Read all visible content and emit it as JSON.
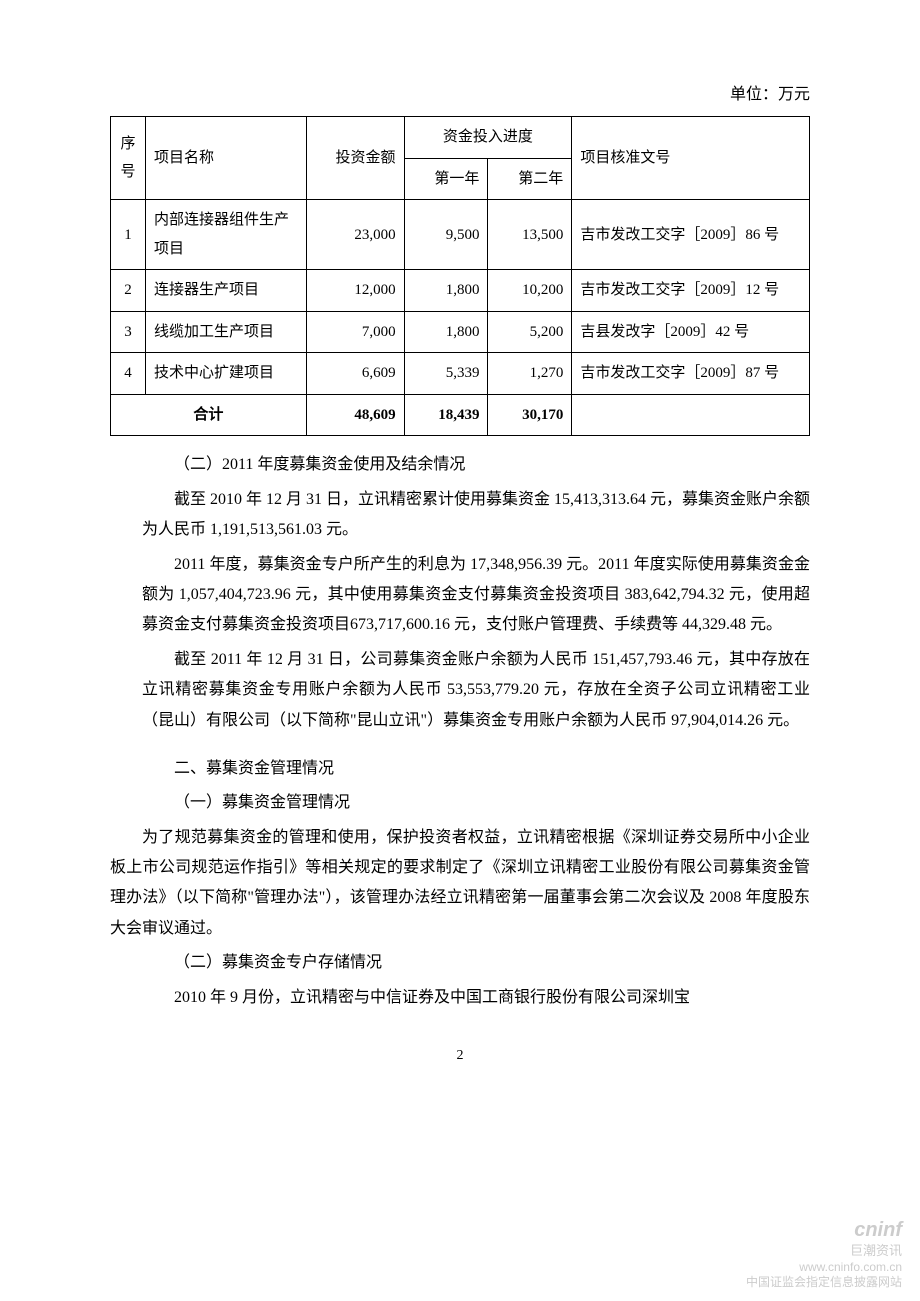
{
  "unit_label": "单位：万元",
  "table": {
    "headers": {
      "seq": "序号",
      "name": "项目名称",
      "amount": "投资金额",
      "progress_group": "资金投入进度",
      "year1": "第一年",
      "year2": "第二年",
      "approval": "项目核准文号"
    },
    "rows": [
      {
        "seq": "1",
        "name": "内部连接器组件生产项目",
        "amount": "23,000",
        "y1": "9,500",
        "y2": "13,500",
        "approval": "吉市发改工交字［2009］86 号"
      },
      {
        "seq": "2",
        "name": "连接器生产项目",
        "amount": "12,000",
        "y1": "1,800",
        "y2": "10,200",
        "approval": "吉市发改工交字［2009］12 号"
      },
      {
        "seq": "3",
        "name": "线缆加工生产项目",
        "amount": "7,000",
        "y1": "1,800",
        "y2": "5,200",
        "approval": "吉县发改字［2009］42 号"
      },
      {
        "seq": "4",
        "name": "技术中心扩建项目",
        "amount": "6,609",
        "y1": "5,339",
        "y2": "1,270",
        "approval": "吉市发改工交字［2009］87 号"
      }
    ],
    "total": {
      "label": "合计",
      "amount": "48,609",
      "y1": "18,439",
      "y2": "30,170",
      "approval": ""
    }
  },
  "paragraphs": {
    "p1": "（二）2011 年度募集资金使用及结余情况",
    "p2": "截至 2010 年 12 月 31 日，立讯精密累计使用募集资金 15,413,313.64 元，募集资金账户余额为人民币 1,191,513,561.03 元。",
    "p3": "2011 年度，募集资金专户所产生的利息为 17,348,956.39 元。2011 年度实际使用募集资金金额为 1,057,404,723.96 元，其中使用募集资金支付募集资金投资项目 383,642,794.32 元，使用超募资金支付募集资金投资项目673,717,600.16 元，支付账户管理费、手续费等 44,329.48 元。",
    "p4": "截至 2011 年 12 月 31 日，公司募集资金账户余额为人民币 151,457,793.46 元，其中存放在立讯精密募集资金专用账户余额为人民币 53,553,779.20 元，存放在全资子公司立讯精密工业（昆山）有限公司（以下简称\"昆山立讯\"）募集资金专用账户余额为人民币 97,904,014.26 元。",
    "p5": "二、募集资金管理情况",
    "p6": "（一）募集资金管理情况",
    "p7": "为了规范募集资金的管理和使用，保护投资者权益，立讯精密根据《深圳证券交易所中小企业板上市公司规范运作指引》等相关规定的要求制定了《深圳立讯精密工业股份有限公司募集资金管理办法》（以下简称\"管理办法\"），该管理办法经立讯精密第一届董事会第二次会议及 2008 年度股东大会审议通过。",
    "p8": "（二）募集资金专户存储情况",
    "p9": "2010 年 9 月份，立讯精密与中信证券及中国工商银行股份有限公司深圳宝"
  },
  "page_number": "2",
  "watermark": {
    "brand": "cninf",
    "zh": "巨潮资讯",
    "url": "www.cninfo.com.cn",
    "note": "中国证监会指定信息披露网站"
  }
}
